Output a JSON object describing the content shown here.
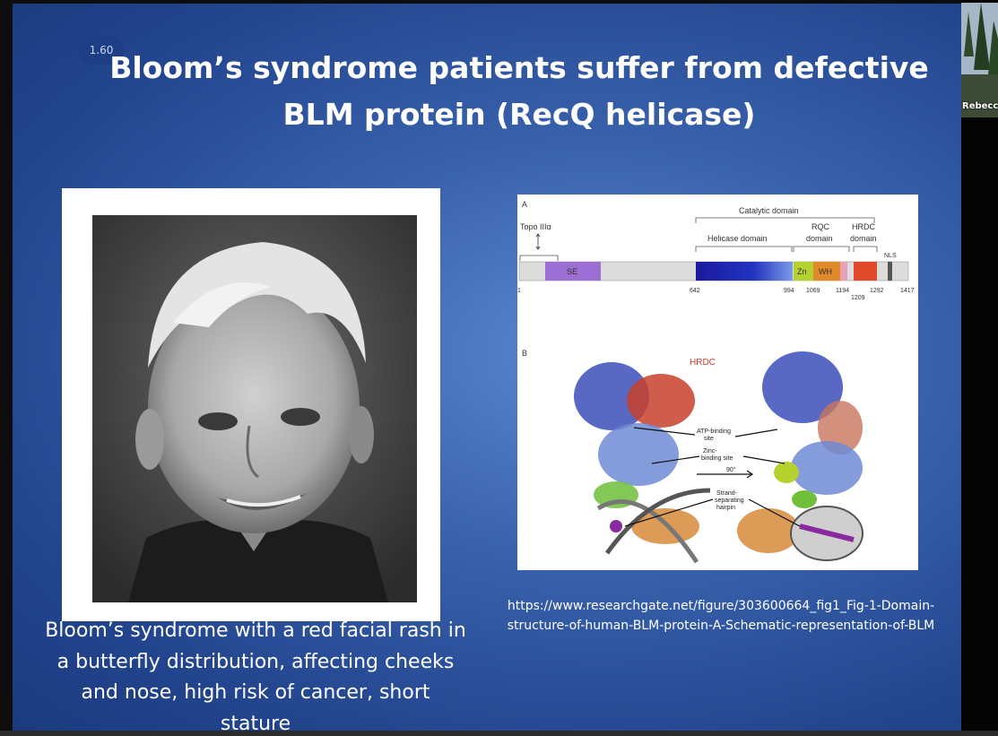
{
  "slide": {
    "number": "1.60",
    "title_line1": "Bloom’s syndrome patients suffer from defective",
    "title_line2": "BLM protein (RecQ helicase)",
    "caption_lines": [
      "Bloom’s syndrome with a red facial rash in",
      "a butterfly distribution, affecting cheeks",
      "and nose, high risk of cancer, short",
      "stature"
    ],
    "url_lines": [
      "https://www.researchgate.net/figure/303600664_fig1_Fig-1-Domain-",
      "structure-of-human-BLM-protein-A-Schematic-representation-of-BLM"
    ]
  },
  "figure": {
    "panel_a": "A",
    "panel_b": "B",
    "catalytic_domain": "Catalytic domain",
    "topo": "Topo IIIα",
    "helicase_domain": "Helicase domain",
    "rqc_line1": "RQC",
    "rqc_line2": "domain",
    "hrdc_line1": "HRDC",
    "hrdc_line2": "domain",
    "nls": "NLS",
    "se": "SE",
    "zn": "Zn",
    "wh": "WH",
    "positions": [
      "1",
      "642",
      "994",
      "1069",
      "1194",
      "1292",
      "1417",
      "1209"
    ],
    "hrdc_label": "HRDC",
    "atp_1": "ATP-binding",
    "atp_2": "site",
    "zinc_1": "Zinc-",
    "zinc_2": "binding site",
    "rot": "90°",
    "strand_1": "Strand-",
    "strand_2": "separating",
    "strand_3": "hairpin"
  },
  "thumbnail": {
    "name": "Rebecc"
  },
  "colors": {
    "se": "#9b6fd3",
    "helicase_start": "#1a1a9c",
    "helicase_end": "#6a8fe0",
    "zn": "#b5d12e",
    "wh": "#e08a2a",
    "hrdc": "#e04a2a",
    "nls": "#555555"
  }
}
